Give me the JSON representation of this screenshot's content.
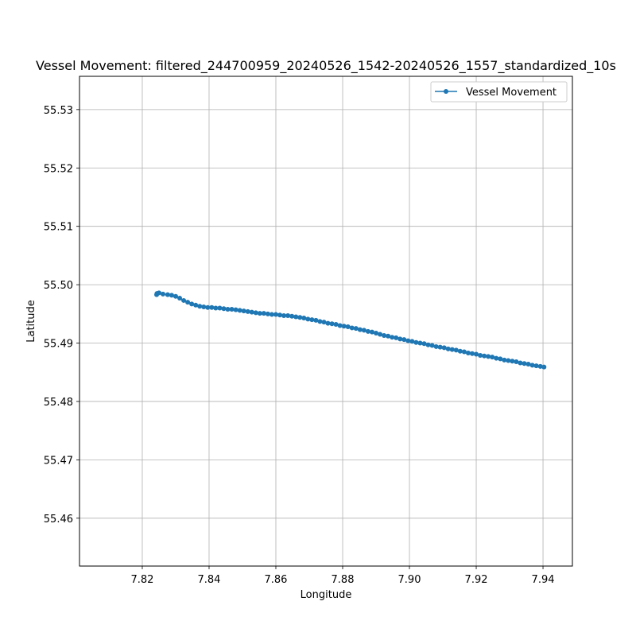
{
  "chart_data": {
    "type": "line",
    "title": "Vessel Movement: filtered_244700959_20240526_1542-20240526_1557_standardized_10s",
    "xlabel": "Longitude",
    "ylabel": "Latitude",
    "xlim": [
      7.8012,
      7.9488
    ],
    "ylim": [
      55.4518,
      55.5357
    ],
    "x_ticks": [
      7.82,
      7.84,
      7.86,
      7.88,
      7.9,
      7.92,
      7.94
    ],
    "x_tick_labels": [
      "7.82",
      "7.84",
      "7.86",
      "7.88",
      "7.90",
      "7.92",
      "7.94"
    ],
    "y_ticks": [
      55.46,
      55.47,
      55.48,
      55.49,
      55.5,
      55.51,
      55.52,
      55.53
    ],
    "y_tick_labels": [
      "55.46",
      "55.47",
      "55.48",
      "55.49",
      "55.50",
      "55.51",
      "55.52",
      "55.53"
    ],
    "grid": true,
    "legend_position": "top-right",
    "series": [
      {
        "name": "Vessel Movement",
        "color": "#1f77b4",
        "marker": "circle",
        "x": [
          7.8243,
          7.8244,
          7.825,
          7.8262,
          7.8276,
          7.8288,
          7.83,
          7.8312,
          7.8324,
          7.8336,
          7.8348,
          7.836,
          7.8372,
          7.8384,
          7.8396,
          7.8408,
          7.842,
          7.8432,
          7.8444,
          7.8456,
          7.8468,
          7.848,
          7.8492,
          7.8504,
          7.8516,
          7.8528,
          7.854,
          7.8552,
          7.8564,
          7.8576,
          7.8588,
          7.86,
          7.8612,
          7.8624,
          7.8636,
          7.8648,
          7.866,
          7.8672,
          7.8684,
          7.8696,
          7.8708,
          7.872,
          7.8732,
          7.8744,
          7.8756,
          7.8768,
          7.878,
          7.8792,
          7.8804,
          7.8816,
          7.8828,
          7.884,
          7.8852,
          7.8864,
          7.8876,
          7.8888,
          7.89,
          7.8912,
          7.8924,
          7.8936,
          7.8948,
          7.896,
          7.8972,
          7.8984,
          7.8996,
          7.9008,
          7.902,
          7.9032,
          7.9044,
          7.9056,
          7.9068,
          7.908,
          7.9092,
          7.9104,
          7.9116,
          7.9128,
          7.914,
          7.9152,
          7.9164,
          7.9176,
          7.9188,
          7.92,
          7.9212,
          7.9224,
          7.9236,
          7.9248,
          7.926,
          7.9272,
          7.9284,
          7.9296,
          7.9308,
          7.932,
          7.9332,
          7.9344,
          7.9356,
          7.9368,
          7.938,
          7.9392,
          7.9403
        ],
        "y": [
          55.4983,
          55.4985,
          55.4986,
          55.4984,
          55.4983,
          55.4982,
          55.498,
          55.4977,
          55.4973,
          55.497,
          55.4967,
          55.4965,
          55.4963,
          55.4962,
          55.4961,
          55.4961,
          55.496,
          55.496,
          55.4959,
          55.4958,
          55.4958,
          55.4957,
          55.4956,
          55.4955,
          55.4954,
          55.4953,
          55.4952,
          55.4951,
          55.4951,
          55.495,
          55.4949,
          55.4949,
          55.4948,
          55.4947,
          55.4947,
          55.4946,
          55.4945,
          55.4944,
          55.4943,
          55.4941,
          55.494,
          55.4939,
          55.4937,
          55.4936,
          55.4934,
          55.4933,
          55.4932,
          55.493,
          55.4929,
          55.4928,
          55.4926,
          55.4925,
          55.4923,
          55.4922,
          55.492,
          55.4919,
          55.4917,
          55.4915,
          55.4913,
          55.4912,
          55.491,
          55.4909,
          55.4907,
          55.4906,
          55.4904,
          55.4903,
          55.4901,
          55.49,
          55.4899,
          55.4897,
          55.4896,
          55.4894,
          55.4893,
          55.4892,
          55.489,
          55.4889,
          55.4888,
          55.4886,
          55.4885,
          55.4883,
          55.4882,
          55.4881,
          55.4879,
          55.4878,
          55.4877,
          55.4876,
          55.4874,
          55.4873,
          55.4871,
          55.487,
          55.4869,
          55.4868,
          55.4866,
          55.4865,
          55.4864,
          55.4862,
          55.4861,
          55.486,
          55.4859
        ]
      }
    ]
  }
}
